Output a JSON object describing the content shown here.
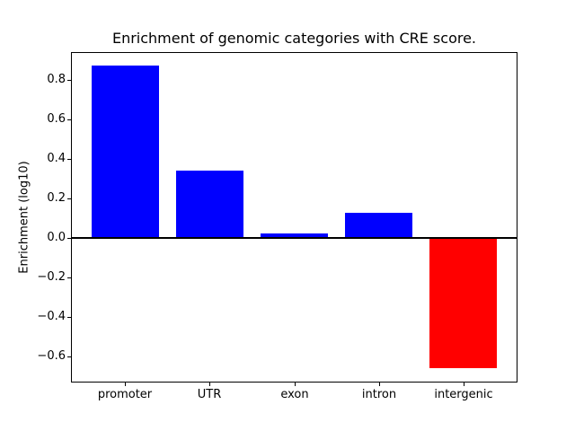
{
  "figure": {
    "background": "#ffffff",
    "text_color": "#000000",
    "frame_color": "#000000"
  },
  "chart_data": {
    "type": "bar",
    "title": "Enrichment of genomic categories with CRE score.",
    "xlabel": "",
    "ylabel": "Enrichment (log10)",
    "categories": [
      "promoter",
      "UTR",
      "exon",
      "intron",
      "intergenic"
    ],
    "values": [
      0.87,
      0.34,
      0.025,
      0.13,
      -0.66
    ],
    "bar_colors": [
      "#0000ff",
      "#0000ff",
      "#0000ff",
      "#0000ff",
      "#ff0000"
    ],
    "positive_color": "#0000ff",
    "negative_color": "#ff0000",
    "bar_width_fraction": 0.8,
    "ylim": [
      -0.73,
      0.94
    ],
    "xlim": [
      -0.64,
      4.64
    ],
    "yticks": [
      {
        "value": 0.8,
        "label": "0.8"
      },
      {
        "value": 0.6,
        "label": "0.6"
      },
      {
        "value": 0.4,
        "label": "0.4"
      },
      {
        "value": 0.2,
        "label": "0.2"
      },
      {
        "value": 0.0,
        "label": "0.0"
      },
      {
        "value": -0.2,
        "label": "−0.2"
      },
      {
        "value": -0.4,
        "label": "−0.4"
      },
      {
        "value": -0.6,
        "label": "−0.6"
      }
    ],
    "zero_line": true,
    "grid": false,
    "legend": null
  }
}
